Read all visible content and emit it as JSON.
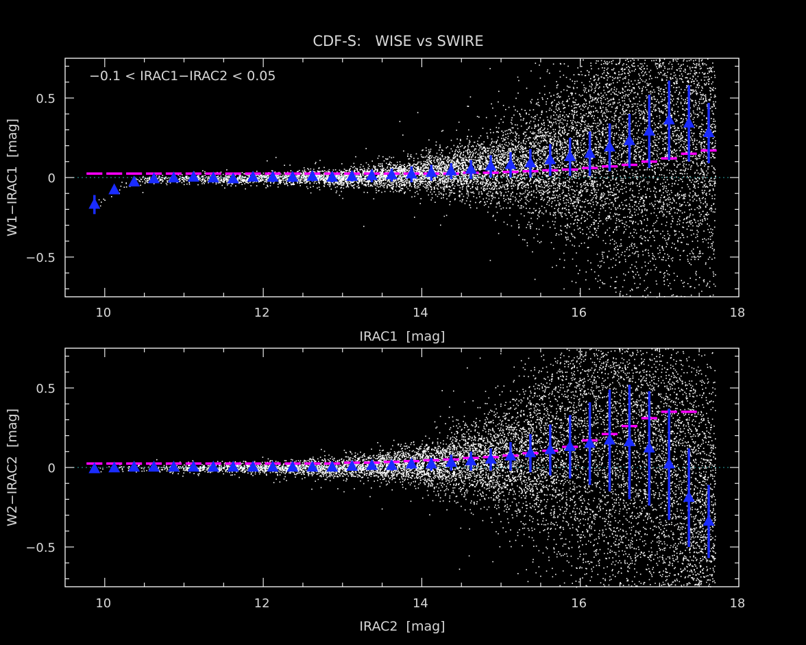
{
  "figure": {
    "title": "CDF-S:   WISE vs SWIRE",
    "colors": {
      "background": "#000000",
      "points": "#ffffff",
      "binned": "#1a2cff",
      "reference": "#ff00ff",
      "zeroline": "#2aa8a8"
    }
  },
  "chart_data": [
    {
      "type": "scatter",
      "id": "top",
      "xlabel": "IRAC1  [mag]",
      "ylabel": "W1−IRAC1  [mag]",
      "xlim": [
        9.5,
        18
      ],
      "ylim": [
        -0.75,
        0.75
      ],
      "xticks": [
        "10",
        "12",
        "14",
        "16",
        "18"
      ],
      "yticks": [
        "−0.5",
        "0",
        "0.5"
      ],
      "annotation": "−0.1 < IRAC1−IRAC2 < 0.05",
      "series": [
        {
          "kind": "binned-median-with-errorbars",
          "x": [
            9.87,
            10.12,
            10.37,
            10.62,
            10.87,
            11.12,
            11.37,
            11.62,
            11.87,
            12.12,
            12.37,
            12.62,
            12.87,
            13.12,
            13.37,
            13.62,
            13.87,
            14.12,
            14.37,
            14.62,
            14.87,
            15.12,
            15.37,
            15.62,
            15.87,
            16.12,
            16.37,
            16.62,
            16.87,
            17.12,
            17.37,
            17.62
          ],
          "y": [
            -0.17,
            -0.08,
            -0.03,
            -0.01,
            -0.005,
            0.0,
            -0.005,
            -0.01,
            0.0,
            0.0,
            0.0,
            0.005,
            0.0,
            0.005,
            0.01,
            0.015,
            0.02,
            0.03,
            0.04,
            0.05,
            0.07,
            0.08,
            0.09,
            0.11,
            0.13,
            0.15,
            0.19,
            0.23,
            0.29,
            0.36,
            0.34,
            0.28
          ],
          "err": [
            0.06,
            0.025,
            0.02,
            0.02,
            0.02,
            0.02,
            0.02,
            0.02,
            0.02,
            0.03,
            0.03,
            0.03,
            0.03,
            0.03,
            0.04,
            0.04,
            0.05,
            0.05,
            0.05,
            0.06,
            0.07,
            0.08,
            0.09,
            0.1,
            0.12,
            0.14,
            0.15,
            0.17,
            0.23,
            0.25,
            0.24,
            0.19
          ]
        },
        {
          "kind": "reference-dashed-line",
          "x": [
            9.87,
            10.12,
            10.37,
            10.62,
            10.87,
            11.12,
            11.37,
            11.62,
            11.87,
            12.12,
            12.37,
            12.62,
            12.87,
            13.12,
            13.37,
            13.62,
            13.87,
            14.12,
            14.37,
            14.62,
            14.87,
            15.12,
            15.37,
            15.62,
            15.87,
            16.12,
            16.37,
            16.62,
            16.87,
            17.12,
            17.37,
            17.62
          ],
          "y": [
            0.025,
            0.025,
            0.025,
            0.025,
            0.025,
            0.025,
            0.025,
            0.025,
            0.025,
            0.025,
            0.025,
            0.025,
            0.025,
            0.025,
            0.025,
            0.025,
            0.025,
            0.025,
            0.025,
            0.03,
            0.03,
            0.035,
            0.04,
            0.045,
            0.05,
            0.06,
            0.07,
            0.08,
            0.1,
            0.12,
            0.15,
            0.17
          ]
        }
      ]
    },
    {
      "type": "scatter",
      "id": "bottom",
      "xlabel": "IRAC2  [mag]",
      "ylabel": "W2−IRAC2  [mag]",
      "xlim": [
        9.5,
        18
      ],
      "ylim": [
        -0.75,
        0.75
      ],
      "xticks": [
        "10",
        "12",
        "14",
        "16",
        "18"
      ],
      "yticks": [
        "−0.5",
        "0",
        "0.5"
      ],
      "series": [
        {
          "kind": "binned-median-with-errorbars",
          "x": [
            9.87,
            10.12,
            10.37,
            10.62,
            10.87,
            11.12,
            11.37,
            11.62,
            11.87,
            12.12,
            12.37,
            12.62,
            12.87,
            13.12,
            13.37,
            13.62,
            13.87,
            14.12,
            14.37,
            14.62,
            14.87,
            15.12,
            15.37,
            15.62,
            15.87,
            16.12,
            16.37,
            16.62,
            16.87,
            17.12,
            17.37,
            17.62
          ],
          "y": [
            -0.01,
            -0.005,
            0.0,
            0.0,
            0.0,
            0.0,
            0.0,
            0.0,
            0.0,
            0.0,
            0.0,
            0.0,
            0.0,
            0.005,
            0.01,
            0.01,
            0.02,
            0.02,
            0.03,
            0.04,
            0.05,
            0.07,
            0.09,
            0.11,
            0.13,
            0.15,
            0.17,
            0.16,
            0.12,
            0.02,
            -0.19,
            -0.34
          ],
          "err": [
            0.02,
            0.02,
            0.02,
            0.02,
            0.02,
            0.02,
            0.02,
            0.02,
            0.02,
            0.02,
            0.02,
            0.02,
            0.02,
            0.02,
            0.02,
            0.03,
            0.03,
            0.04,
            0.05,
            0.06,
            0.07,
            0.09,
            0.12,
            0.16,
            0.2,
            0.26,
            0.32,
            0.36,
            0.36,
            0.35,
            0.31,
            0.23
          ]
        },
        {
          "kind": "reference-dashed-line",
          "x": [
            9.87,
            10.12,
            10.37,
            10.62,
            10.87,
            11.12,
            11.37,
            11.62,
            11.87,
            12.12,
            12.37,
            12.62,
            12.87,
            13.12,
            13.37,
            13.62,
            13.87,
            14.12,
            14.37,
            14.62,
            14.87,
            15.12,
            15.37,
            15.62,
            15.87,
            16.12,
            16.37,
            16.62,
            16.87,
            17.12,
            17.37
          ],
          "y": [
            0.025,
            0.025,
            0.025,
            0.025,
            0.025,
            0.025,
            0.025,
            0.025,
            0.025,
            0.025,
            0.025,
            0.025,
            0.025,
            0.03,
            0.03,
            0.035,
            0.04,
            0.045,
            0.05,
            0.06,
            0.065,
            0.075,
            0.09,
            0.105,
            0.13,
            0.17,
            0.21,
            0.26,
            0.31,
            0.35,
            0.35
          ]
        }
      ]
    }
  ]
}
